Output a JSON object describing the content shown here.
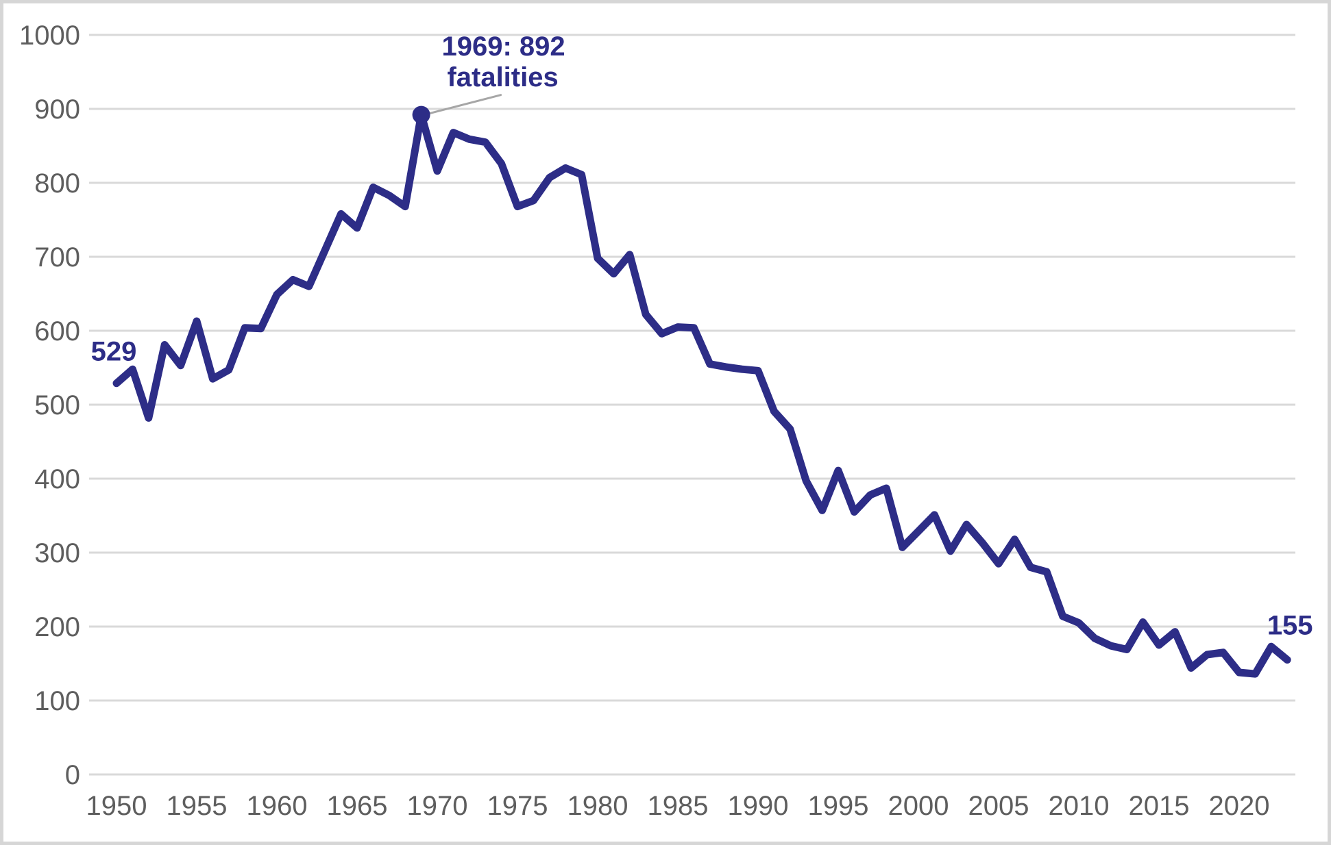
{
  "chart_data": {
    "type": "line",
    "title": "",
    "xlabel": "",
    "ylabel": "",
    "x": [
      1950,
      1951,
      1952,
      1953,
      1954,
      1955,
      1956,
      1957,
      1958,
      1959,
      1960,
      1961,
      1962,
      1963,
      1964,
      1965,
      1966,
      1967,
      1968,
      1969,
      1970,
      1971,
      1972,
      1973,
      1974,
      1975,
      1976,
      1977,
      1978,
      1979,
      1980,
      1981,
      1982,
      1983,
      1984,
      1985,
      1986,
      1987,
      1988,
      1989,
      1990,
      1991,
      1992,
      1993,
      1994,
      1995,
      1996,
      1997,
      1998,
      1999,
      2000,
      2001,
      2002,
      2003,
      2004,
      2005,
      2006,
      2007,
      2008,
      2009,
      2010,
      2011,
      2012,
      2013,
      2014,
      2015,
      2016,
      2017,
      2018,
      2019,
      2020,
      2021,
      2022,
      2023
    ],
    "values": [
      529,
      548,
      482,
      581,
      553,
      613,
      535,
      547,
      604,
      603,
      649,
      669,
      660,
      709,
      758,
      739,
      794,
      783,
      768,
      892,
      816,
      868,
      859,
      855,
      826,
      768,
      776,
      807,
      820,
      811,
      698,
      677,
      703,
      622,
      596,
      605,
      604,
      555,
      551,
      548,
      546,
      491,
      467,
      397,
      357,
      411,
      355,
      378,
      387,
      307,
      329,
      351,
      302,
      338,
      313,
      285,
      318,
      280,
      274,
      214,
      205,
      184,
      174,
      169,
      206,
      175,
      193,
      144,
      162,
      165,
      138,
      136,
      173,
      155
    ],
    "series_name": "fatalities",
    "ylim": [
      0,
      1000
    ],
    "xlim": [
      1950,
      2023
    ],
    "y_ticks": [
      0,
      100,
      200,
      300,
      400,
      500,
      600,
      700,
      800,
      900,
      1000
    ],
    "x_ticks": [
      1950,
      1955,
      1960,
      1965,
      1970,
      1975,
      1980,
      1985,
      1990,
      1995,
      2000,
      2005,
      2010,
      2015,
      2020
    ],
    "grid": "horizontal",
    "legend": "none",
    "annotations": {
      "start_label": "529",
      "end_label": "155",
      "peak_label_line1": "1969: 892",
      "peak_label_line2": "fatalities",
      "peak_year": 1969,
      "peak_value": 892
    },
    "colors": {
      "line": "#2d2d87",
      "grid": "#d9d9d9",
      "axis_text": "#5e5e5e",
      "annotation_text": "#2d2d87",
      "leader_line": "#a6a6a6",
      "frame_border": "#d6d6d6",
      "background": "#ffffff"
    }
  }
}
